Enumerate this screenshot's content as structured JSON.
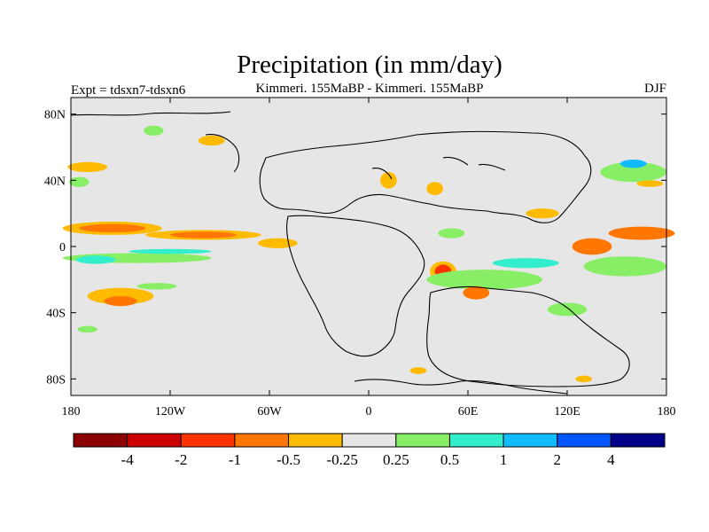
{
  "chart_data": {
    "type": "heatmap",
    "title": "Precipitation (in mm/day)",
    "left_label": "Expt = tdsxn7-tdsxn6",
    "center_label": "Kimmeri. 155MaBP - Kimmeri. 155MaBP",
    "right_label": "DJF",
    "x_range": [
      -180,
      180
    ],
    "y_range": [
      -90,
      90
    ],
    "x_ticks": [
      {
        "value": -180,
        "label": "180"
      },
      {
        "value": -120,
        "label": "120W"
      },
      {
        "value": -60,
        "label": "60W"
      },
      {
        "value": 0,
        "label": "0"
      },
      {
        "value": 60,
        "label": "60E"
      },
      {
        "value": 120,
        "label": "120E"
      },
      {
        "value": 180,
        "label": "180"
      }
    ],
    "y_ticks": [
      {
        "value": 80,
        "label": "80N"
      },
      {
        "value": 40,
        "label": "40N"
      },
      {
        "value": 0,
        "label": "0"
      },
      {
        "value": -40,
        "label": "40S"
      },
      {
        "value": -80,
        "label": "80S"
      }
    ],
    "colorbar": {
      "colors": [
        "#8b0000",
        "#cc0000",
        "#ff3300",
        "#ff7700",
        "#ffbb00",
        "#e6e6e6",
        "#88ee66",
        "#33eecc",
        "#11bbff",
        "#0055ff",
        "#000088"
      ],
      "labels": [
        "-4",
        "-2",
        "-1",
        "-0.5",
        "-0.25",
        "0.25",
        "0.5",
        "1",
        "2",
        "4"
      ]
    },
    "anomaly_regions": [
      {
        "lon": -170,
        "lat": 48,
        "rlon": 12,
        "rlat": 3,
        "value": -0.3
      },
      {
        "lon": -175,
        "lat": 39,
        "rlon": 6,
        "rlat": 3,
        "value": 0.3
      },
      {
        "lon": -155,
        "lat": 11,
        "rlon": 30,
        "rlat": 4,
        "value": -0.3
      },
      {
        "lon": -155,
        "lat": 11,
        "rlon": 20,
        "rlat": 2.5,
        "value": -0.8
      },
      {
        "lon": -100,
        "lat": 7,
        "rlon": 35,
        "rlat": 3,
        "value": -0.3
      },
      {
        "lon": -100,
        "lat": 7,
        "rlon": 20,
        "rlat": 2,
        "value": -0.8
      },
      {
        "lon": -55,
        "lat": 2,
        "rlon": 12,
        "rlat": 3,
        "value": -0.5
      },
      {
        "lon": -140,
        "lat": -7,
        "rlon": 45,
        "rlat": 3,
        "value": 0.3
      },
      {
        "lon": -165,
        "lat": -8,
        "rlon": 12,
        "rlat": 2.5,
        "value": 0.6
      },
      {
        "lon": -120,
        "lat": -3,
        "rlon": 25,
        "rlat": 1.5,
        "value": 0.6
      },
      {
        "lon": -150,
        "lat": -30,
        "rlon": 20,
        "rlat": 5,
        "value": -0.3
      },
      {
        "lon": -150,
        "lat": -33,
        "rlon": 10,
        "rlat": 3,
        "value": -0.7
      },
      {
        "lon": -128,
        "lat": -24,
        "rlon": 12,
        "rlat": 2,
        "value": 0.3
      },
      {
        "lon": -170,
        "lat": -50,
        "rlon": 6,
        "rlat": 2,
        "value": 0.3
      },
      {
        "lon": -130,
        "lat": 70,
        "rlon": 6,
        "rlat": 3,
        "value": 0.4
      },
      {
        "lon": -95,
        "lat": 64,
        "rlon": 8,
        "rlat": 3,
        "value": -0.3
      },
      {
        "lon": 12,
        "lat": 40,
        "rlon": 5,
        "rlat": 5,
        "value": -0.3
      },
      {
        "lon": 40,
        "lat": 35,
        "rlon": 5,
        "rlat": 4,
        "value": -0.3
      },
      {
        "lon": 45,
        "lat": -15,
        "rlon": 8,
        "rlat": 6,
        "value": -0.5
      },
      {
        "lon": 45,
        "lat": -15,
        "rlon": 5,
        "rlat": 4,
        "value": -1.5
      },
      {
        "lon": 50,
        "lat": 8,
        "rlon": 8,
        "rlat": 3,
        "value": 0.4
      },
      {
        "lon": 70,
        "lat": -20,
        "rlon": 35,
        "rlat": 6,
        "value": 0.4
      },
      {
        "lon": 95,
        "lat": -10,
        "rlon": 20,
        "rlat": 3,
        "value": 0.8
      },
      {
        "lon": 65,
        "lat": -28,
        "rlon": 8,
        "rlat": 4,
        "value": -0.7
      },
      {
        "lon": 105,
        "lat": 20,
        "rlon": 10,
        "rlat": 3,
        "value": -0.3
      },
      {
        "lon": 135,
        "lat": 0,
        "rlon": 12,
        "rlat": 5,
        "value": -0.7
      },
      {
        "lon": 165,
        "lat": 8,
        "rlon": 20,
        "rlat": 4,
        "value": -0.7
      },
      {
        "lon": 155,
        "lat": -12,
        "rlon": 25,
        "rlat": 6,
        "value": 0.4
      },
      {
        "lon": 160,
        "lat": 45,
        "rlon": 20,
        "rlat": 6,
        "value": 0.4
      },
      {
        "lon": 160,
        "lat": 50,
        "rlon": 8,
        "rlat": 2.5,
        "value": 1.5
      },
      {
        "lon": 170,
        "lat": 38,
        "rlon": 8,
        "rlat": 2,
        "value": -0.5
      },
      {
        "lon": 120,
        "lat": -38,
        "rlon": 12,
        "rlat": 4,
        "value": 0.4
      },
      {
        "lon": 130,
        "lat": -80,
        "rlon": 5,
        "rlat": 2,
        "value": -0.3
      },
      {
        "lon": 30,
        "lat": -75,
        "rlon": 5,
        "rlat": 2,
        "value": -0.3
      }
    ]
  }
}
